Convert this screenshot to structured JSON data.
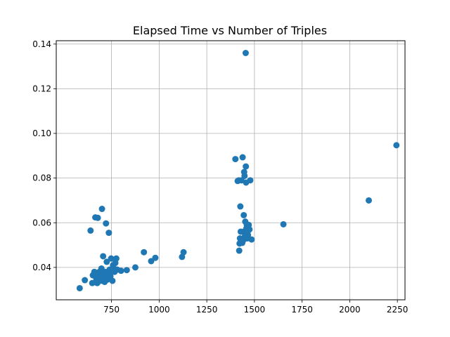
{
  "chart_data": {
    "type": "scatter",
    "title": "Elapsed Time vs Number of Triples",
    "xlabel": "",
    "ylabel": "",
    "xlim": [
      460,
      2290
    ],
    "ylim": [
      0.0255,
      0.1415
    ],
    "xticks": [
      750,
      1000,
      1250,
      1500,
      1750,
      2000,
      2250
    ],
    "yticks": [
      0.04,
      0.06,
      0.08,
      0.1,
      0.12,
      0.14
    ],
    "xtick_labels": [
      "750",
      "1000",
      "1250",
      "1500",
      "1750",
      "2000",
      "2250"
    ],
    "ytick_labels": [
      "0.04",
      "0.06",
      "0.08",
      "0.10",
      "0.12",
      "0.14"
    ],
    "grid": true,
    "color": "#1f77b4",
    "points": [
      {
        "x": 583,
        "y": 0.0307
      },
      {
        "x": 610,
        "y": 0.0343
      },
      {
        "x": 640,
        "y": 0.0565
      },
      {
        "x": 649,
        "y": 0.033
      },
      {
        "x": 652,
        "y": 0.0365
      },
      {
        "x": 660,
        "y": 0.038
      },
      {
        "x": 665,
        "y": 0.0624
      },
      {
        "x": 670,
        "y": 0.035
      },
      {
        "x": 675,
        "y": 0.033
      },
      {
        "x": 678,
        "y": 0.0622
      },
      {
        "x": 682,
        "y": 0.036
      },
      {
        "x": 686,
        "y": 0.038
      },
      {
        "x": 690,
        "y": 0.034
      },
      {
        "x": 693,
        "y": 0.0355
      },
      {
        "x": 697,
        "y": 0.0395
      },
      {
        "x": 700,
        "y": 0.0662
      },
      {
        "x": 704,
        "y": 0.034
      },
      {
        "x": 706,
        "y": 0.045
      },
      {
        "x": 710,
        "y": 0.0365
      },
      {
        "x": 714,
        "y": 0.0335
      },
      {
        "x": 718,
        "y": 0.038
      },
      {
        "x": 721,
        "y": 0.0597
      },
      {
        "x": 725,
        "y": 0.0425
      },
      {
        "x": 728,
        "y": 0.0345
      },
      {
        "x": 732,
        "y": 0.037
      },
      {
        "x": 736,
        "y": 0.0555
      },
      {
        "x": 740,
        "y": 0.039
      },
      {
        "x": 744,
        "y": 0.036
      },
      {
        "x": 748,
        "y": 0.044
      },
      {
        "x": 752,
        "y": 0.038
      },
      {
        "x": 755,
        "y": 0.034
      },
      {
        "x": 758,
        "y": 0.041
      },
      {
        "x": 762,
        "y": 0.0395
      },
      {
        "x": 766,
        "y": 0.038
      },
      {
        "x": 770,
        "y": 0.042
      },
      {
        "x": 775,
        "y": 0.044
      },
      {
        "x": 780,
        "y": 0.039
      },
      {
        "x": 800,
        "y": 0.0385
      },
      {
        "x": 830,
        "y": 0.0388
      },
      {
        "x": 875,
        "y": 0.04
      },
      {
        "x": 920,
        "y": 0.0468
      },
      {
        "x": 958,
        "y": 0.0428
      },
      {
        "x": 980,
        "y": 0.0443
      },
      {
        "x": 1120,
        "y": 0.0447
      },
      {
        "x": 1128,
        "y": 0.0468
      },
      {
        "x": 1400,
        "y": 0.0885
      },
      {
        "x": 1412,
        "y": 0.0787
      },
      {
        "x": 1418,
        "y": 0.079
      },
      {
        "x": 1420,
        "y": 0.0475
      },
      {
        "x": 1422,
        "y": 0.0507
      },
      {
        "x": 1424,
        "y": 0.053
      },
      {
        "x": 1426,
        "y": 0.0673
      },
      {
        "x": 1428,
        "y": 0.056
      },
      {
        "x": 1432,
        "y": 0.079
      },
      {
        "x": 1436,
        "y": 0.051
      },
      {
        "x": 1438,
        "y": 0.0893
      },
      {
        "x": 1440,
        "y": 0.052
      },
      {
        "x": 1442,
        "y": 0.056
      },
      {
        "x": 1444,
        "y": 0.0634
      },
      {
        "x": 1446,
        "y": 0.0827
      },
      {
        "x": 1448,
        "y": 0.081
      },
      {
        "x": 1450,
        "y": 0.054
      },
      {
        "x": 1452,
        "y": 0.0605
      },
      {
        "x": 1454,
        "y": 0.136
      },
      {
        "x": 1455,
        "y": 0.0852
      },
      {
        "x": 1456,
        "y": 0.078
      },
      {
        "x": 1458,
        "y": 0.0575
      },
      {
        "x": 1460,
        "y": 0.059
      },
      {
        "x": 1462,
        "y": 0.053
      },
      {
        "x": 1464,
        "y": 0.056
      },
      {
        "x": 1466,
        "y": 0.0545
      },
      {
        "x": 1470,
        "y": 0.059
      },
      {
        "x": 1474,
        "y": 0.057
      },
      {
        "x": 1478,
        "y": 0.079
      },
      {
        "x": 1485,
        "y": 0.0525
      },
      {
        "x": 1652,
        "y": 0.0593
      },
      {
        "x": 2100,
        "y": 0.07
      },
      {
        "x": 2245,
        "y": 0.0947
      }
    ]
  }
}
